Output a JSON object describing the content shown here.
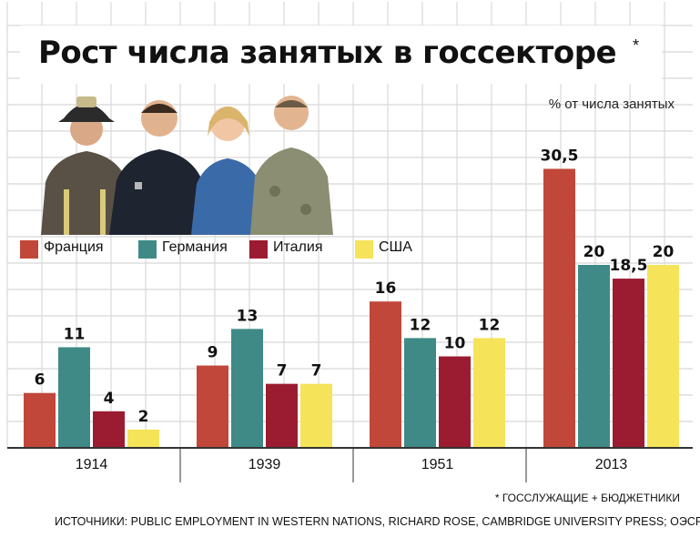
{
  "header": {
    "title": "Рост числа занятых в госсекторе",
    "title_star": "*",
    "unit": "% от числа занятых"
  },
  "footer": {
    "footnote": "* ГОССЛУЖАЩИЕ + БЮДЖЕТНИКИ",
    "sources": "ИСТОЧНИКИ: PUBLIC EMPLOYMENT IN WESTERN NATIONS, RICHARD ROSE, CAMBRIDGE UNIVERSITY PRESS; ОЭСР"
  },
  "colors": {
    "france": "#c0473a",
    "germany": "#3f8a86",
    "italy": "#9b1c31",
    "usa": "#f5e35a",
    "grid": "#d8d8d8",
    "axis": "#333333"
  },
  "chart_data": {
    "type": "bar",
    "title": "Рост числа занятых в госсекторе",
    "ylabel": "% от числа занятых",
    "xlabel": "",
    "categories": [
      "1914",
      "1939",
      "1951",
      "2013"
    ],
    "ylim": [
      0,
      35
    ],
    "grid": true,
    "legend_position": "top-left",
    "series": [
      {
        "name": "Франция",
        "color": "#c0473a",
        "values": [
          6,
          9,
          16,
          30.5
        ],
        "labels": [
          "6",
          "9",
          "16",
          "30,5"
        ]
      },
      {
        "name": "Германия",
        "color": "#3f8a86",
        "values": [
          11,
          13,
          12,
          20
        ],
        "labels": [
          "11",
          "13",
          "12",
          "20"
        ]
      },
      {
        "name": "Италия",
        "color": "#9b1c31",
        "values": [
          4,
          7,
          10,
          18.5
        ],
        "labels": [
          "4",
          "7",
          "10",
          "18,5"
        ]
      },
      {
        "name": "США",
        "color": "#f5e35a",
        "values": [
          2,
          7,
          12,
          20
        ],
        "labels": [
          "2",
          "7",
          "12",
          "20"
        ]
      }
    ]
  }
}
